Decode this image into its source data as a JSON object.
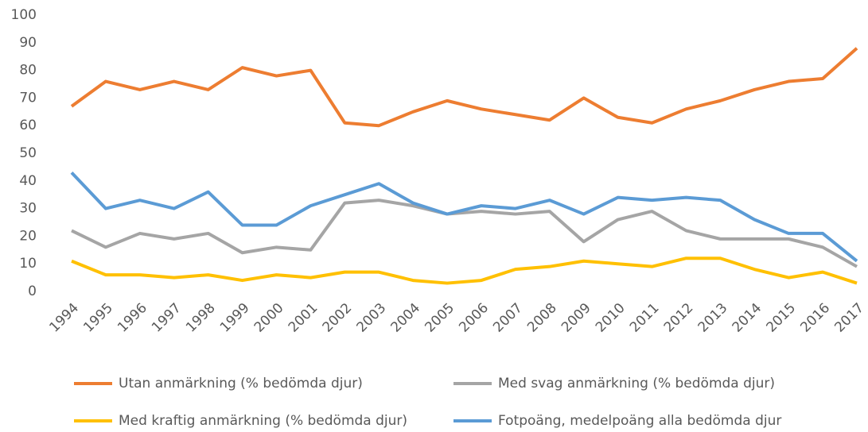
{
  "chart_data": {
    "type": "line",
    "categories": [
      "1994",
      "1995",
      "1996",
      "1997",
      "1998",
      "1999",
      "2000",
      "2001",
      "2002",
      "2003",
      "2004",
      "2005",
      "2006",
      "2007",
      "2008",
      "2009",
      "2010",
      "2011",
      "2012",
      "2013",
      "2014",
      "2015",
      "2016",
      "2017"
    ],
    "series": [
      {
        "name": "Utan anmärkning (% bedömda djur)",
        "color": "#ed7d31",
        "values": [
          67,
          76,
          73,
          76,
          73,
          81,
          78,
          80,
          61,
          60,
          65,
          69,
          66,
          64,
          62,
          70,
          63,
          61,
          66,
          69,
          73,
          76,
          77,
          88
        ]
      },
      {
        "name": "Med svag anmärkning (% bedömda djur)",
        "color": "#a5a5a5",
        "values": [
          22,
          16,
          21,
          19,
          21,
          14,
          16,
          15,
          32,
          33,
          31,
          28,
          29,
          28,
          29,
          18,
          26,
          29,
          22,
          19,
          19,
          19,
          16,
          9
        ]
      },
      {
        "name": "Med kraftig anmärkning (% bedömda djur)",
        "color": "#ffc000",
        "values": [
          11,
          6,
          6,
          5,
          6,
          4,
          6,
          5,
          7,
          7,
          4,
          3,
          4,
          8,
          9,
          11,
          10,
          9,
          12,
          12,
          8,
          5,
          7,
          3
        ]
      },
      {
        "name": "Fotpoäng, medelpoäng alla bedömda djur",
        "color": "#5b9bd5",
        "values": [
          43,
          30,
          33,
          30,
          36,
          24,
          24,
          31,
          35,
          39,
          32,
          28,
          31,
          30,
          33,
          28,
          34,
          33,
          34,
          33,
          26,
          21,
          21,
          11
        ]
      }
    ],
    "ylim": [
      0,
      100
    ],
    "yticks": [
      0,
      10,
      20,
      30,
      40,
      50,
      60,
      70,
      80,
      90,
      100
    ],
    "grid": false,
    "legend": "bottom"
  }
}
